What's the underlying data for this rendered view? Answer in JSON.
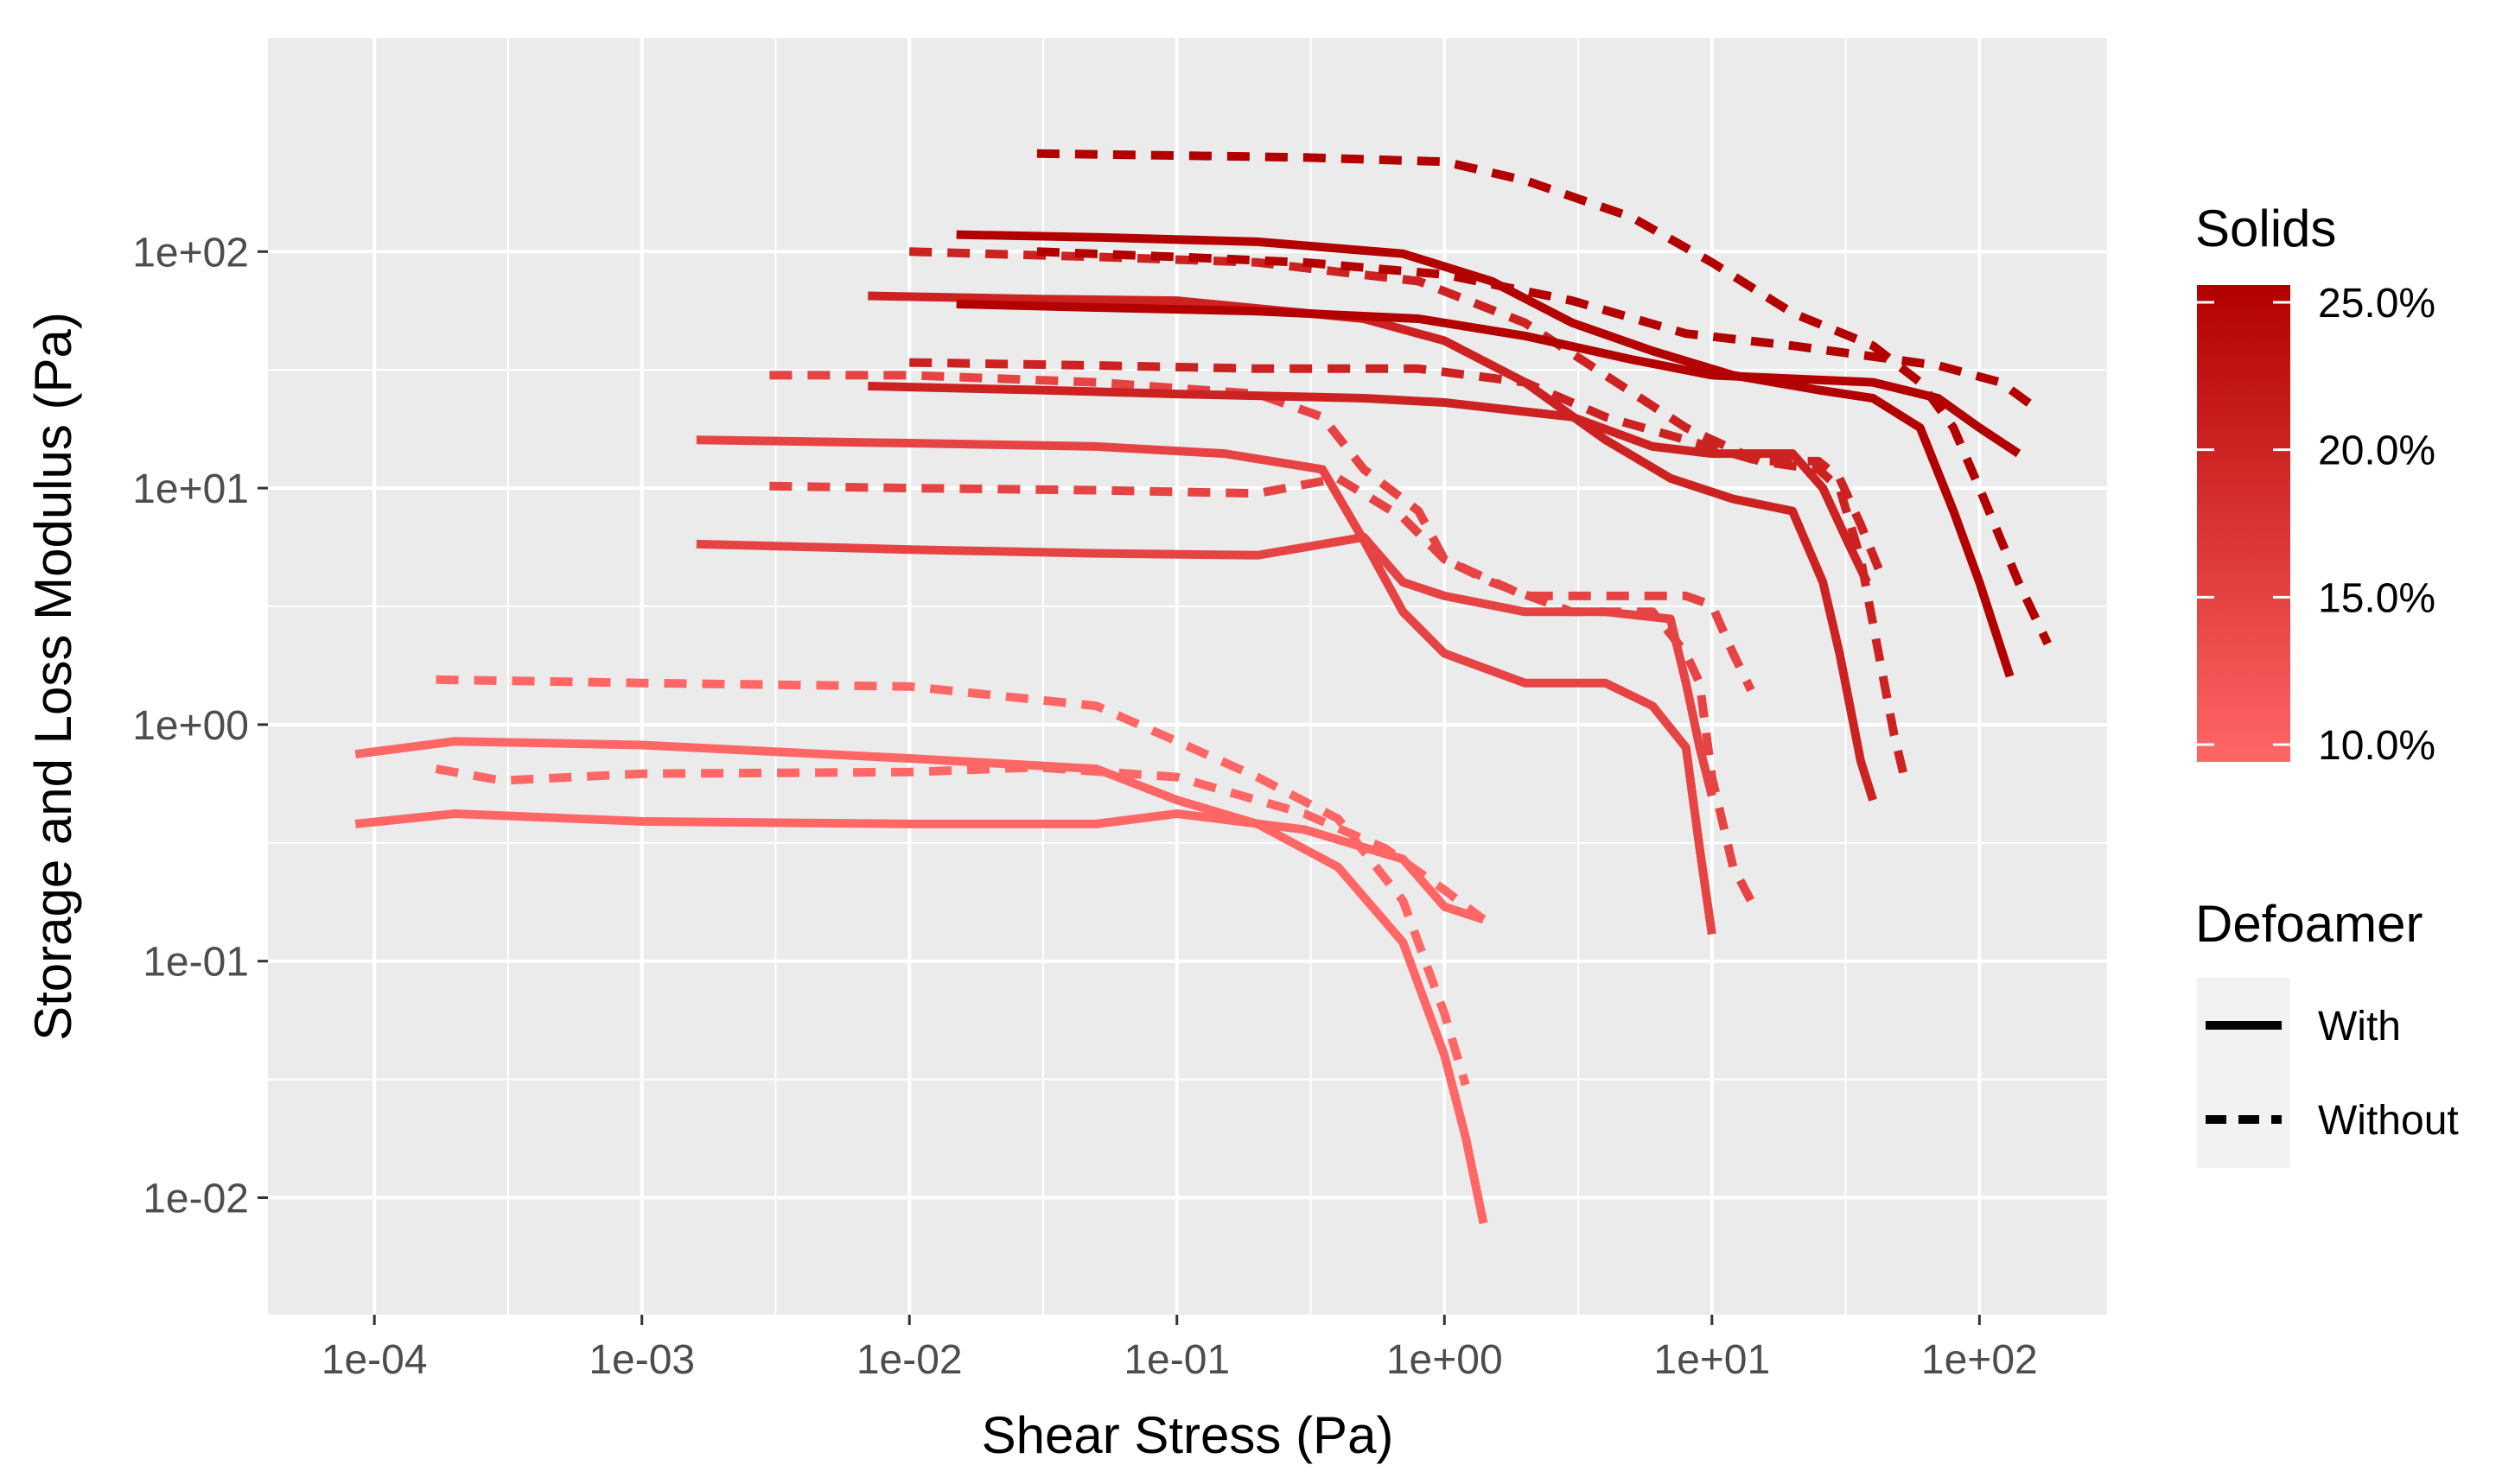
{
  "chart_data": {
    "type": "line",
    "xlabel": "Shear Stress (Pa)",
    "ylabel": "Storage and Loss Modulus (Pa)",
    "x_scale": "log10",
    "y_scale": "log10",
    "xlim": [
      4e-05,
      300
    ],
    "ylim": [
      0.0032,
      800
    ],
    "x_ticks": [
      {
        "value": 0.0001,
        "label": "1e-04"
      },
      {
        "value": 0.001,
        "label": "1e-03"
      },
      {
        "value": 0.01,
        "label": "1e-02"
      },
      {
        "value": 0.1,
        "label": "1e-01"
      },
      {
        "value": 1,
        "label": "1e+00"
      },
      {
        "value": 10,
        "label": "1e+01"
      },
      {
        "value": 100,
        "label": "1e+02"
      }
    ],
    "y_ticks": [
      {
        "value": 0.01,
        "label": "1e-02"
      },
      {
        "value": 0.1,
        "label": "1e-01"
      },
      {
        "value": 1,
        "label": "1e+00"
      },
      {
        "value": 10,
        "label": "1e+01"
      },
      {
        "value": 100,
        "label": "1e+02"
      }
    ],
    "grid": true,
    "panel_background": "#ebebeb",
    "grid_color": "#ffffff",
    "legend_colorbar": {
      "title": "Solids",
      "min": 10,
      "max": 25,
      "low_color": "#ff6666",
      "high_color": "#b30000",
      "breaks": [
        {
          "value": 25,
          "label": "25.0%"
        },
        {
          "value": 20,
          "label": "20.0%"
        },
        {
          "value": 15,
          "label": "15.0%"
        },
        {
          "value": 10,
          "label": "10.0%"
        }
      ]
    },
    "legend_linetype": {
      "title": "Defoamer",
      "items": [
        {
          "label": "With",
          "linetype": "solid"
        },
        {
          "label": "Without",
          "linetype": "dashed"
        }
      ]
    },
    "series": [
      {
        "name": "Storage 10% with",
        "solids": 10,
        "defoamer": "With",
        "points": [
          [
            8.5e-05,
            0.75
          ],
          [
            0.0002,
            0.85
          ],
          [
            0.001,
            0.82
          ],
          [
            0.01,
            0.72
          ],
          [
            0.05,
            0.65
          ],
          [
            0.1,
            0.48
          ],
          [
            0.2,
            0.38
          ],
          [
            0.4,
            0.25
          ],
          [
            0.7,
            0.12
          ],
          [
            1.0,
            0.04
          ],
          [
            1.2,
            0.018
          ],
          [
            1.4,
            0.0078
          ]
        ]
      },
      {
        "name": "Loss 10% with",
        "solids": 10,
        "defoamer": "With",
        "points": [
          [
            8.5e-05,
            0.38
          ],
          [
            0.0002,
            0.42
          ],
          [
            0.001,
            0.39
          ],
          [
            0.01,
            0.38
          ],
          [
            0.05,
            0.38
          ],
          [
            0.1,
            0.42
          ],
          [
            0.3,
            0.36
          ],
          [
            0.7,
            0.27
          ],
          [
            1.0,
            0.17
          ],
          [
            1.4,
            0.15
          ]
        ]
      },
      {
        "name": "Storage 10% without",
        "solids": 10,
        "defoamer": "Without",
        "points": [
          [
            0.00017,
            1.55
          ],
          [
            0.001,
            1.5
          ],
          [
            0.01,
            1.45
          ],
          [
            0.05,
            1.2
          ],
          [
            0.1,
            0.85
          ],
          [
            0.2,
            0.6
          ],
          [
            0.4,
            0.4
          ],
          [
            0.7,
            0.18
          ],
          [
            1.0,
            0.06
          ],
          [
            1.2,
            0.03
          ]
        ]
      },
      {
        "name": "Loss 10% without",
        "solids": 10,
        "defoamer": "Without",
        "points": [
          [
            0.00017,
            0.65
          ],
          [
            0.0003,
            0.58
          ],
          [
            0.001,
            0.62
          ],
          [
            0.01,
            0.63
          ],
          [
            0.03,
            0.66
          ],
          [
            0.1,
            0.6
          ],
          [
            0.3,
            0.42
          ],
          [
            0.6,
            0.3
          ],
          [
            1.0,
            0.2
          ],
          [
            1.4,
            0.15
          ]
        ]
      },
      {
        "name": "Storage 15% with",
        "solids": 15,
        "defoamer": "With",
        "points": [
          [
            0.0016,
            16
          ],
          [
            0.01,
            15.5
          ],
          [
            0.05,
            15
          ],
          [
            0.15,
            14
          ],
          [
            0.35,
            12
          ],
          [
            0.5,
            6
          ],
          [
            0.7,
            3
          ],
          [
            1.0,
            2
          ],
          [
            2,
            1.5
          ],
          [
            4,
            1.5
          ],
          [
            6,
            1.2
          ],
          [
            8,
            0.8
          ],
          [
            9,
            0.3
          ],
          [
            10,
            0.13
          ]
        ]
      },
      {
        "name": "Loss 15% with",
        "solids": 15,
        "defoamer": "With",
        "points": [
          [
            0.0016,
            5.8
          ],
          [
            0.01,
            5.5
          ],
          [
            0.05,
            5.3
          ],
          [
            0.2,
            5.2
          ],
          [
            0.5,
            6.2
          ],
          [
            0.7,
            4
          ],
          [
            1.0,
            3.5
          ],
          [
            2,
            3
          ],
          [
            4,
            3
          ],
          [
            7,
            2.8
          ],
          [
            8,
            1.5
          ],
          [
            9,
            0.8
          ],
          [
            10,
            0.5
          ]
        ]
      },
      {
        "name": "Storage 15% without",
        "solids": 15,
        "defoamer": "Without",
        "points": [
          [
            0.003,
            30
          ],
          [
            0.01,
            30
          ],
          [
            0.05,
            28
          ],
          [
            0.2,
            25
          ],
          [
            0.35,
            20
          ],
          [
            0.5,
            12
          ],
          [
            0.8,
            8
          ],
          [
            1.0,
            5
          ],
          [
            1.5,
            4
          ],
          [
            3,
            3
          ],
          [
            6,
            3
          ],
          [
            8,
            2
          ],
          [
            9,
            1.5
          ],
          [
            10,
            0.6
          ],
          [
            12,
            0.25
          ],
          [
            14,
            0.18
          ]
        ]
      },
      {
        "name": "Loss 15% without",
        "solids": 15,
        "defoamer": "Without",
        "points": [
          [
            0.003,
            10.2
          ],
          [
            0.01,
            10
          ],
          [
            0.05,
            9.8
          ],
          [
            0.2,
            9.5
          ],
          [
            0.4,
            11
          ],
          [
            0.7,
            7.5
          ],
          [
            1.0,
            5
          ],
          [
            2,
            3.5
          ],
          [
            5,
            3.5
          ],
          [
            8,
            3.5
          ],
          [
            10,
            3.2
          ],
          [
            12,
            2
          ],
          [
            14,
            1.4
          ]
        ]
      },
      {
        "name": "Storage 20% with",
        "solids": 20,
        "defoamer": "With",
        "points": [
          [
            0.007,
            65
          ],
          [
            0.03,
            63
          ],
          [
            0.1,
            62
          ],
          [
            0.5,
            52
          ],
          [
            1.0,
            42
          ],
          [
            2,
            28
          ],
          [
            4,
            16
          ],
          [
            7,
            11
          ],
          [
            12,
            9
          ],
          [
            20,
            8
          ],
          [
            26,
            4
          ],
          [
            30,
            2
          ],
          [
            36,
            0.7
          ],
          [
            40,
            0.48
          ]
        ]
      },
      {
        "name": "Loss 20% with",
        "solids": 20,
        "defoamer": "With",
        "points": [
          [
            0.007,
            27
          ],
          [
            0.03,
            26
          ],
          [
            0.1,
            25
          ],
          [
            0.5,
            24
          ],
          [
            1.0,
            23
          ],
          [
            3,
            20
          ],
          [
            6,
            15
          ],
          [
            10,
            14
          ],
          [
            20,
            14
          ],
          [
            26,
            10
          ],
          [
            32,
            6
          ],
          [
            38,
            4
          ]
        ]
      },
      {
        "name": "Storage 20% without",
        "solids": 20,
        "defoamer": "Without",
        "points": [
          [
            0.01,
            100
          ],
          [
            0.05,
            95
          ],
          [
            0.2,
            90
          ],
          [
            0.8,
            75
          ],
          [
            2,
            50
          ],
          [
            4,
            30
          ],
          [
            8,
            18
          ],
          [
            15,
            13
          ],
          [
            25,
            12
          ],
          [
            30,
            10
          ],
          [
            36,
            5
          ],
          [
            42,
            2
          ],
          [
            48,
            0.9
          ],
          [
            52,
            0.62
          ]
        ]
      },
      {
        "name": "Loss 20% without",
        "solids": 20,
        "defoamer": "Without",
        "points": [
          [
            0.01,
            34
          ],
          [
            0.05,
            33
          ],
          [
            0.2,
            32
          ],
          [
            0.8,
            32
          ],
          [
            2,
            28
          ],
          [
            4,
            20
          ],
          [
            8,
            16
          ],
          [
            15,
            13
          ],
          [
            25,
            13
          ],
          [
            30,
            11
          ],
          [
            36,
            7
          ],
          [
            44,
            4
          ]
        ]
      },
      {
        "name": "Storage 25% with",
        "solids": 25,
        "defoamer": "With",
        "points": [
          [
            0.015,
            118
          ],
          [
            0.05,
            115
          ],
          [
            0.2,
            110
          ],
          [
            0.7,
            98
          ],
          [
            1.5,
            75
          ],
          [
            3,
            50
          ],
          [
            6,
            38
          ],
          [
            12,
            30
          ],
          [
            25,
            26
          ],
          [
            40,
            24
          ],
          [
            60,
            18
          ],
          [
            80,
            8
          ],
          [
            100,
            4
          ],
          [
            130,
            1.6
          ]
        ]
      },
      {
        "name": "Loss 25% with",
        "solids": 25,
        "defoamer": "With",
        "points": [
          [
            0.015,
            60
          ],
          [
            0.05,
            58
          ],
          [
            0.2,
            56
          ],
          [
            0.8,
            52
          ],
          [
            2,
            44
          ],
          [
            5,
            35
          ],
          [
            10,
            30
          ],
          [
            20,
            29
          ],
          [
            40,
            28
          ],
          [
            70,
            24
          ],
          [
            100,
            18
          ],
          [
            140,
            14
          ]
        ]
      },
      {
        "name": "Storage 25% without",
        "solids": 25,
        "defoamer": "Without",
        "points": [
          [
            0.03,
            260
          ],
          [
            0.1,
            255
          ],
          [
            0.3,
            250
          ],
          [
            1.0,
            240
          ],
          [
            2,
            200
          ],
          [
            5,
            140
          ],
          [
            10,
            90
          ],
          [
            20,
            55
          ],
          [
            40,
            40
          ],
          [
            60,
            28
          ],
          [
            80,
            18
          ],
          [
            100,
            10
          ],
          [
            140,
            4
          ],
          [
            180,
            2.2
          ]
        ]
      },
      {
        "name": "Loss 25% without",
        "solids": 25,
        "defoamer": "Without",
        "points": [
          [
            0.03,
            100
          ],
          [
            0.1,
            95
          ],
          [
            0.3,
            90
          ],
          [
            1.0,
            80
          ],
          [
            3,
            62
          ],
          [
            8,
            45
          ],
          [
            20,
            40
          ],
          [
            40,
            36
          ],
          [
            70,
            33
          ],
          [
            120,
            28
          ],
          [
            170,
            21
          ]
        ]
      }
    ]
  }
}
